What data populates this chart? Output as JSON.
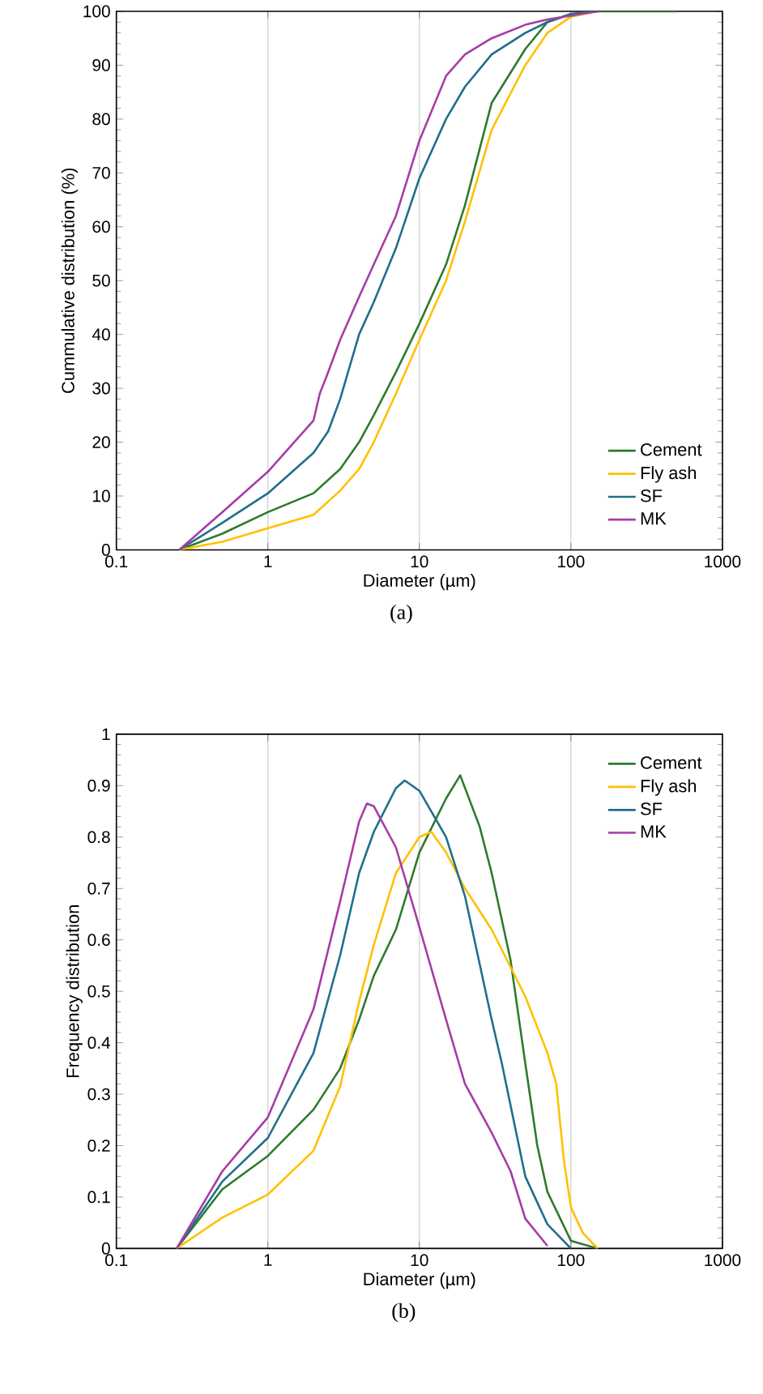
{
  "chart_data": [
    {
      "type": "line",
      "xlabel": "Diameter (µm)",
      "ylabel": "Cummulative distribution (%)",
      "annotations": [
        "(a)"
      ],
      "log": "x",
      "grid": "x",
      "legend": "bottom right",
      "marker": "none",
      "line_style": "solid",
      "xlim": [
        0.1,
        1000
      ],
      "xticks": [
        0.1,
        1,
        10,
        100,
        1000
      ],
      "ylim": [
        0,
        100
      ],
      "yticks": [
        0,
        10,
        20,
        30,
        40,
        50,
        60,
        70,
        80,
        90,
        100
      ],
      "series": [
        {
          "name": "Cement",
          "color": "#2e7a2e",
          "x": [
            0.26,
            0.5,
            1,
            2,
            3,
            4,
            5,
            7,
            10,
            15,
            20,
            30,
            50,
            70,
            100,
            150,
            500
          ],
          "values": [
            0,
            3,
            7,
            10.5,
            15,
            20,
            25,
            33,
            42,
            53,
            64,
            83,
            93,
            98,
            99.5,
            100,
            100
          ]
        },
        {
          "name": "Fly ash",
          "color": "#ffc000",
          "x": [
            0.26,
            0.5,
            1,
            2,
            3,
            4,
            5,
            7,
            10,
            15,
            20,
            30,
            50,
            70,
            100,
            150
          ],
          "values": [
            0,
            1.5,
            4,
            6.5,
            11,
            15,
            20,
            29,
            39,
            50,
            61,
            78,
            90,
            96,
            99,
            100
          ]
        },
        {
          "name": "SF",
          "color": "#1f6f8b",
          "x": [
            0.26,
            0.5,
            1,
            2,
            2.5,
            3,
            4,
            5,
            7,
            10,
            15,
            20,
            30,
            50,
            70,
            100,
            150
          ],
          "values": [
            0,
            5,
            10.5,
            18,
            22,
            28,
            40,
            46,
            56,
            69,
            80,
            86,
            92,
            96,
            98,
            99.5,
            100
          ]
        },
        {
          "name": "MK",
          "color": "#a63ca6",
          "x": [
            0.26,
            0.5,
            1,
            2,
            2.2,
            2.5,
            3,
            4,
            5,
            7,
            10,
            15,
            20,
            30,
            50,
            70,
            150
          ],
          "values": [
            0,
            7,
            14.5,
            24,
            29,
            33,
            39,
            47,
            53,
            62,
            76,
            88,
            92,
            95,
            97.5,
            98.5,
            100
          ]
        }
      ]
    },
    {
      "type": "line",
      "xlabel": "Diameter (µm)",
      "ylabel": "Frequency distribution",
      "annotations": [
        "(b)"
      ],
      "log": "x",
      "grid": "x",
      "legend": "top right",
      "marker": "none",
      "line_style": "solid",
      "xlim": [
        0.1,
        1000
      ],
      "xticks": [
        0.1,
        1,
        10,
        100,
        1000
      ],
      "ylim": [
        0,
        1
      ],
      "yticks": [
        0,
        0.1,
        0.2,
        0.3,
        0.4,
        0.5,
        0.6,
        0.7,
        0.8,
        0.9,
        1
      ],
      "series": [
        {
          "name": "Cement",
          "color": "#2e7a2e",
          "x": [
            0.25,
            0.5,
            1,
            2,
            3,
            4,
            5,
            7,
            10,
            15,
            18.6,
            25,
            30,
            40,
            50,
            60,
            70,
            100,
            150
          ],
          "values": [
            0,
            0.115,
            0.18,
            0.27,
            0.35,
            0.445,
            0.53,
            0.62,
            0.77,
            0.875,
            0.92,
            0.82,
            0.73,
            0.56,
            0.36,
            0.2,
            0.11,
            0.015,
            0
          ]
        },
        {
          "name": "Fly ash",
          "color": "#ffc000",
          "x": [
            0.25,
            0.5,
            1,
            2,
            3,
            4,
            5,
            7,
            10,
            12,
            15,
            20,
            30,
            50,
            70,
            80,
            90,
            100,
            120,
            150
          ],
          "values": [
            0,
            0.06,
            0.105,
            0.19,
            0.315,
            0.48,
            0.59,
            0.73,
            0.8,
            0.81,
            0.77,
            0.7,
            0.62,
            0.49,
            0.38,
            0.32,
            0.17,
            0.08,
            0.03,
            0
          ]
        },
        {
          "name": "SF",
          "color": "#1f6f8b",
          "x": [
            0.25,
            0.5,
            1,
            2,
            3,
            4,
            5,
            7,
            8,
            10,
            15,
            20,
            30,
            35,
            50,
            70,
            100
          ],
          "values": [
            0,
            0.13,
            0.215,
            0.38,
            0.57,
            0.73,
            0.81,
            0.895,
            0.91,
            0.89,
            0.8,
            0.685,
            0.445,
            0.36,
            0.14,
            0.047,
            0
          ]
        },
        {
          "name": "MK",
          "color": "#a63ca6",
          "x": [
            0.25,
            0.5,
            1,
            2,
            3,
            4,
            4.5,
            5,
            7,
            10,
            15,
            20,
            30,
            40,
            50,
            70
          ],
          "values": [
            0,
            0.15,
            0.255,
            0.465,
            0.675,
            0.83,
            0.865,
            0.86,
            0.78,
            0.625,
            0.445,
            0.32,
            0.225,
            0.15,
            0.058,
            0.005
          ]
        }
      ]
    }
  ]
}
